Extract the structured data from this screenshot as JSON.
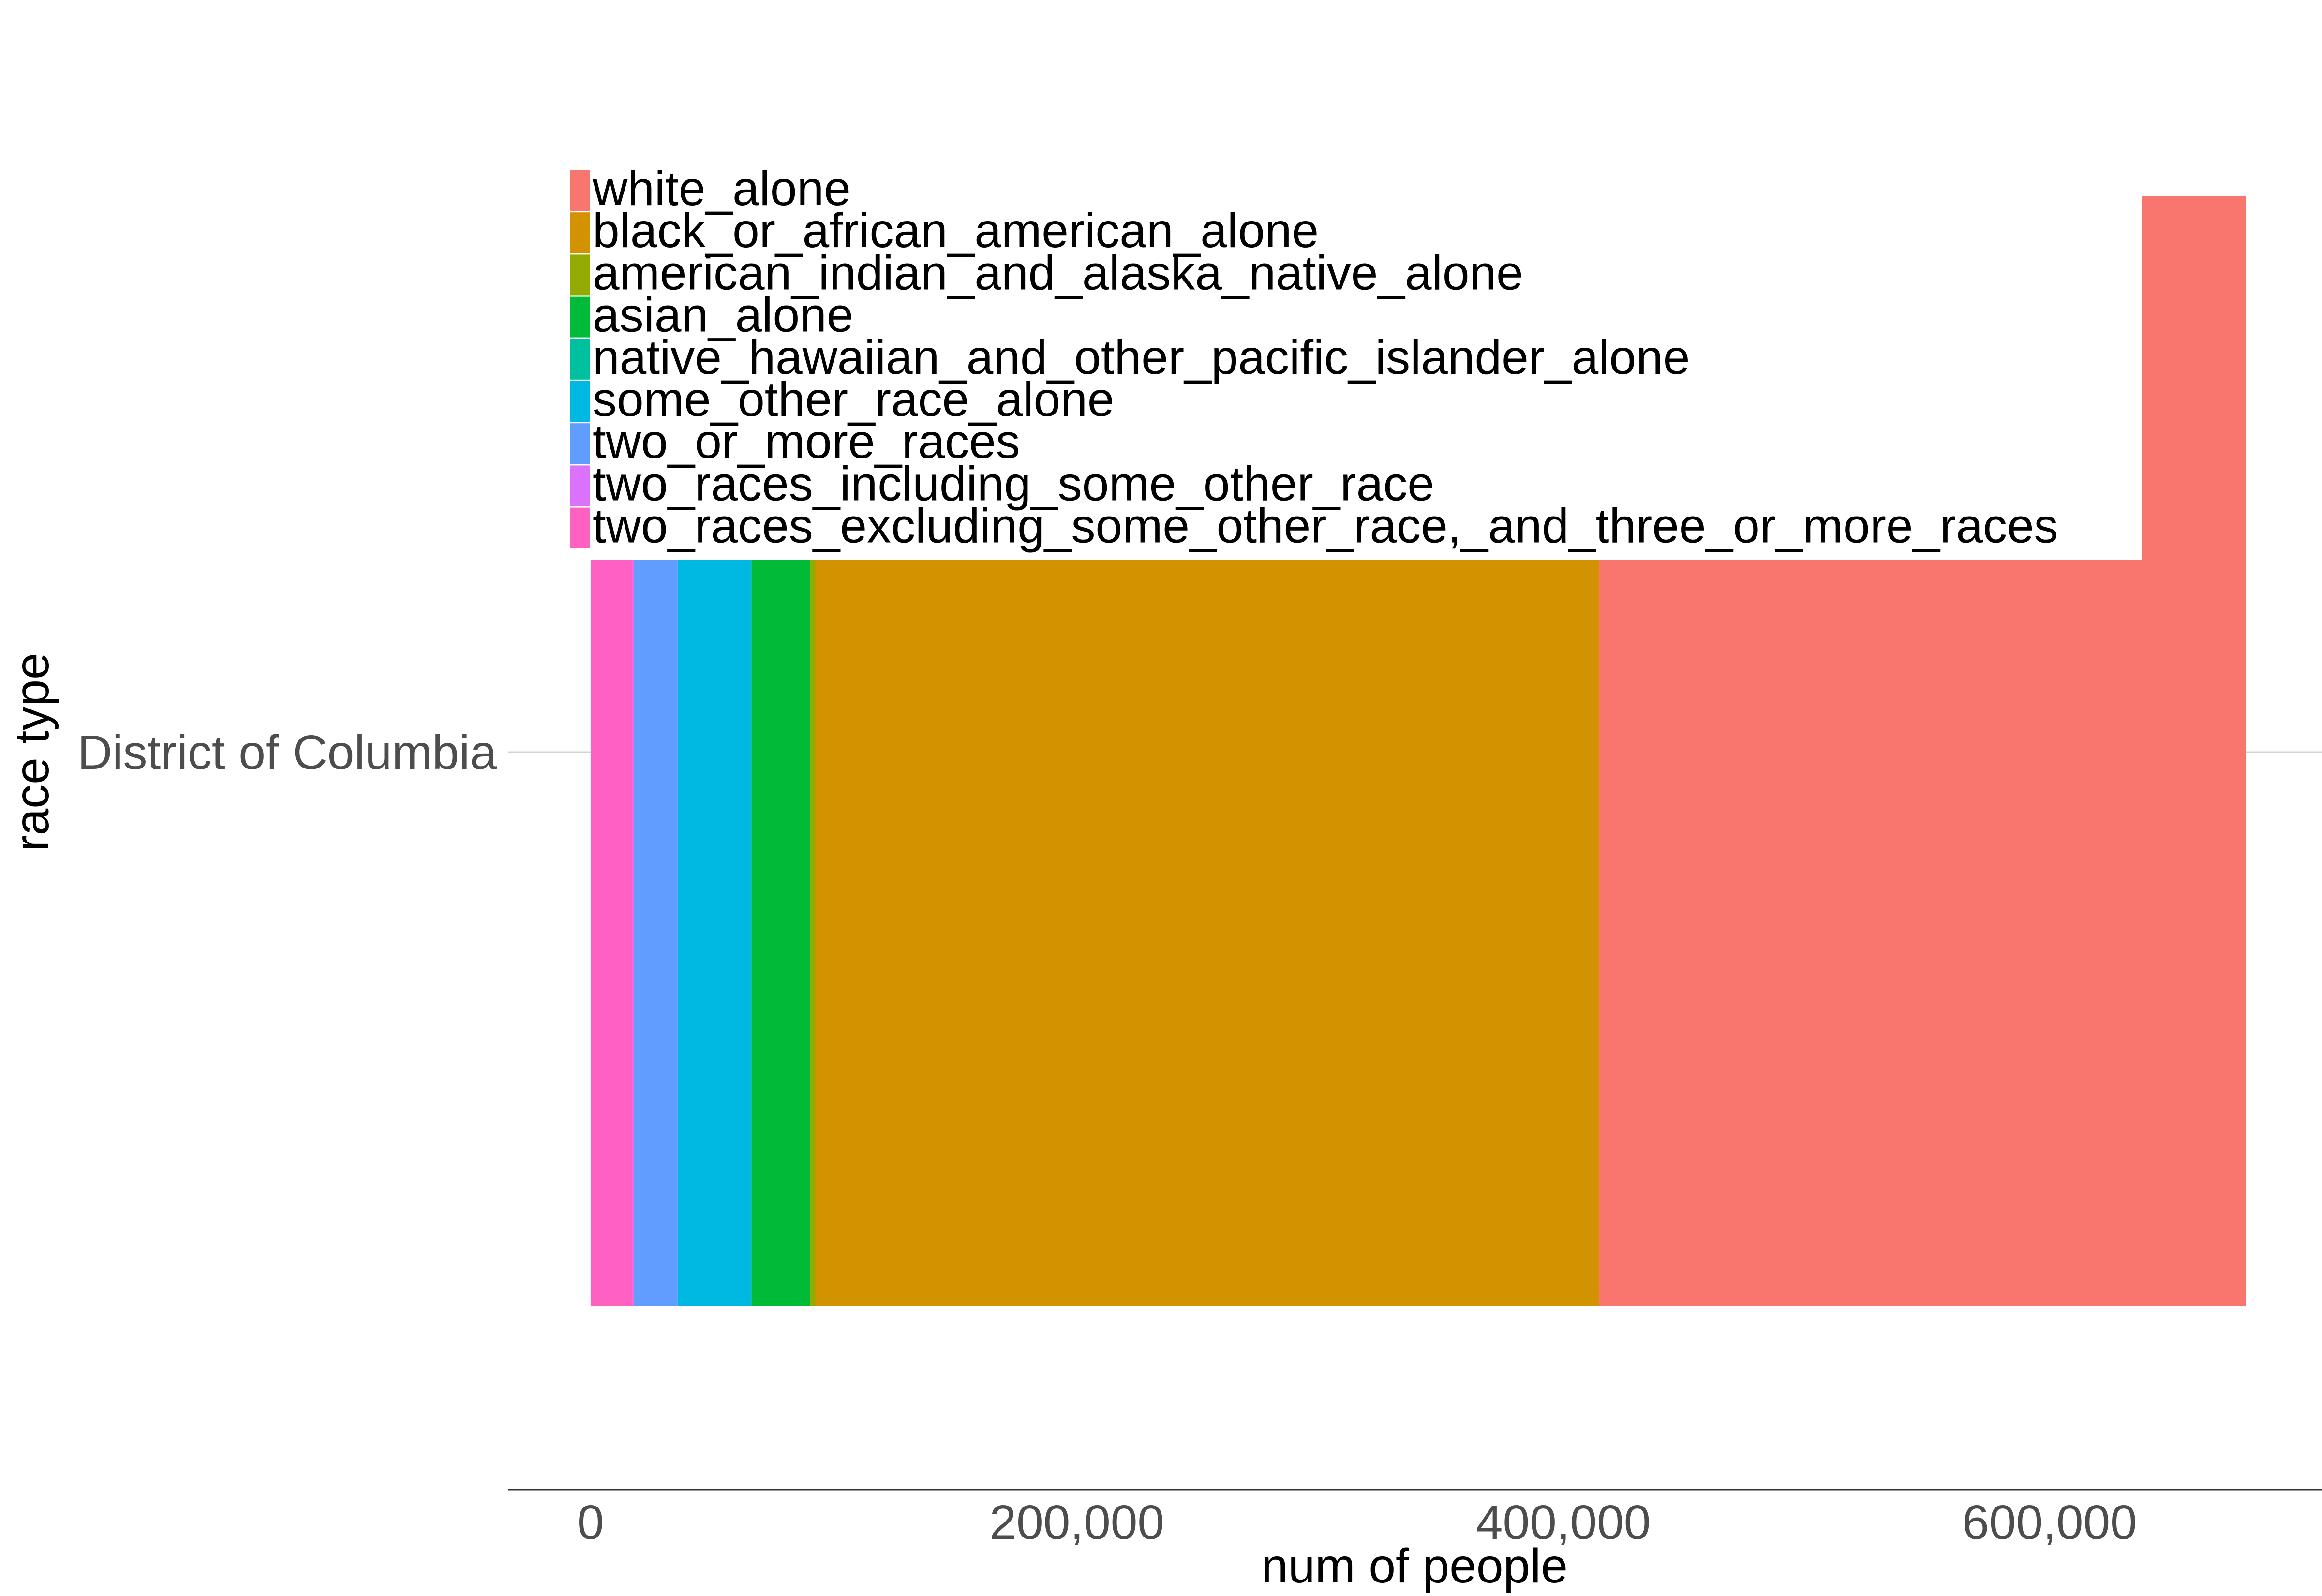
{
  "chart_data": {
    "type": "bar",
    "orientation": "horizontal",
    "stacked": true,
    "title": "",
    "xlabel": "num of people",
    "ylabel": "race type",
    "categories": [
      "District of Columbia"
    ],
    "xlim": [
      -34000,
      712000
    ],
    "x_ticks": [
      0,
      200000,
      400000,
      600000
    ],
    "x_tick_labels": [
      "0",
      "200,000",
      "400,000",
      "600,000"
    ],
    "grid": "horizontal major gridline at category only",
    "legend_position": "top-left, inside plot",
    "series": [
      {
        "name": "white_alone",
        "color": "#F8766D",
        "values": [
          266035
        ]
      },
      {
        "name": "black_or_african_american_alone",
        "color": "#D39200",
        "values": [
          322180
        ]
      },
      {
        "name": "american_indian_and_alaska_native_alone",
        "color": "#93AA00",
        "values": [
          2079
        ]
      },
      {
        "name": "asian_alone",
        "color": "#00BA38",
        "values": [
          24155
        ]
      },
      {
        "name": "native_hawaiian_and_other_pacific_islander_alone",
        "color": "#00C19F",
        "values": [
          302
        ]
      },
      {
        "name": "some_other_race_alone",
        "color": "#00B9E3",
        "values": [
          30090
        ]
      },
      {
        "name": "two_or_more_races",
        "color": "#619CFF",
        "values": [
          17898
        ]
      },
      {
        "name": "two_races_including_some_other_race",
        "color": "#DB72FB",
        "values": [
          584
        ]
      },
      {
        "name": "two_races_excluding_some_other_race,_and_three_or_more_races",
        "color": "#FF61C3",
        "values": [
          17314
        ]
      }
    ],
    "stack_order_from_axis": [
      "two_races_excluding_some_other_race,_and_three_or_more_races",
      "two_races_including_some_other_race",
      "two_or_more_races",
      "some_other_race_alone",
      "native_hawaiian_and_other_pacific_islander_alone",
      "asian_alone",
      "american_indian_and_alaska_native_alone",
      "black_or_african_american_alone",
      "white_alone"
    ]
  }
}
